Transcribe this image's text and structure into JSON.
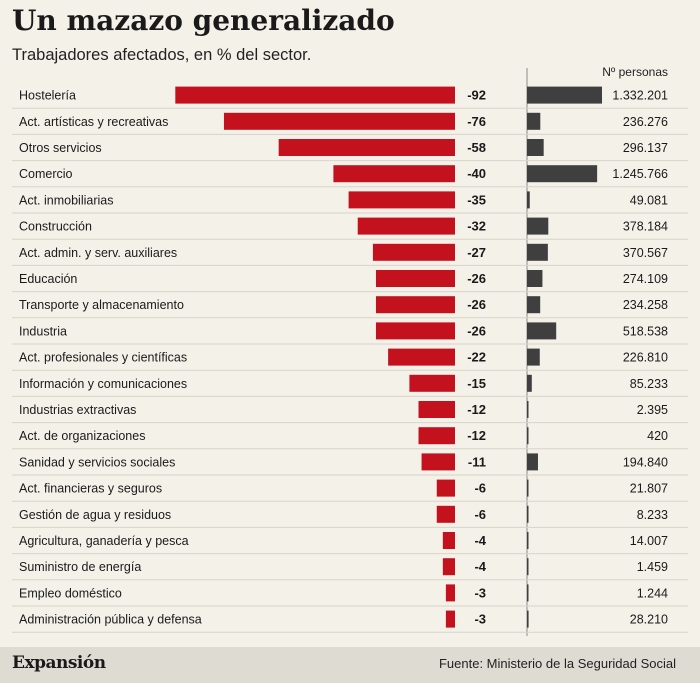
{
  "header": {
    "title": "Un mazazo generalizado",
    "subtitle": "Trabajadores afectados, en % del sector."
  },
  "footer": {
    "brand": "Expansión",
    "source": "Fuente: Ministerio de la Seguridad Social"
  },
  "chart_data": {
    "type": "bar",
    "title": "Un mazazo generalizado",
    "subtitle": "Trabajadores afectados, en % del sector.",
    "colors": {
      "percent_bar": "#c3111d",
      "persons_bar": "#3f3f3f",
      "row_line": "#d8d4cb"
    },
    "categories": [
      "Hostelería",
      "Act. artísticas y recreativas",
      "Otros servicios",
      "Comercio",
      "Act. inmobiliarias",
      "Construcción",
      "Act. admin. y serv. auxiliares",
      "Educación",
      "Transporte y almacenamiento",
      "Industria",
      "Act. profesionales y científicas",
      "Información y comunicaciones",
      "Industrias extractivas",
      "Act. de organizaciones",
      "Sanidad y servicios sociales",
      "Act. financieras y seguros",
      "Gestión de agua y residuos",
      "Agricultura, ganadería y pesca",
      "Suministro de energía",
      "Empleo doméstico",
      "Administración pública y defensa"
    ],
    "series": [
      {
        "values": [
          -92,
          -76,
          -58,
          -40,
          -35,
          -32,
          -27,
          -26,
          -26,
          -26,
          -22,
          -15,
          -12,
          -12,
          -11,
          -6,
          -6,
          -4,
          -4,
          -3,
          -3
        ],
        "labels": [
          "-92",
          "-76",
          "-58",
          "-40",
          "-35",
          "-32",
          "-27",
          "-26",
          "-26",
          "-26",
          "-22",
          "-15",
          "-12",
          "-12",
          "-11",
          "-6",
          "-6",
          "-4",
          "-4",
          "-3",
          "-3"
        ]
      },
      {
        "name": "Nº personas",
        "values": [
          1332201,
          236276,
          296137,
          1245766,
          49081,
          378184,
          370567,
          274109,
          234258,
          518538,
          226810,
          85233,
          2395,
          420,
          194840,
          21807,
          8233,
          14007,
          1459,
          1244,
          28210
        ],
        "labels": [
          "1.332.201",
          "236.276",
          "296.137",
          "1.245.766",
          "49.081",
          "378.184",
          "370.567",
          "274.109",
          "234.258",
          "518.538",
          "226.810",
          "85.233",
          "2.395",
          "420",
          "194.840",
          "21.807",
          "8.233",
          "14.007",
          "1.459",
          "1.244",
          "28.210"
        ]
      }
    ],
    "grid": false
  }
}
